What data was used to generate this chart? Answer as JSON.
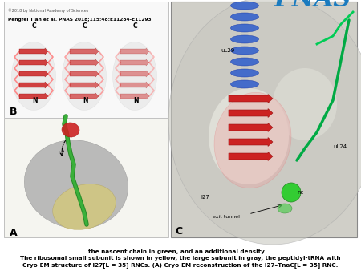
{
  "title_line1": "Cryo-EM structure of I27[L = 35] RNCs. (A) Cryo-EM reconstruction of the I27–TnaC[L = 35] RNC.",
  "title_line2": "The ribosomal small subunit is shown in yellow, the large subunit in gray, the peptidyl-tRNA with",
  "title_line3": "the nascent chain in green, and an additional density ...",
  "citation": "Pengfei Tian et al. PNAS 2018;115:48:E11284-E11293",
  "copyright": "©2018 by National Academy of Sciences",
  "pnas_color": "#1a7bbf",
  "bg_color": "#ffffff",
  "panel_A_label": "A",
  "panel_B_label": "B",
  "panel_C_label": "C",
  "label_exit_tunnel": "exit tunnel",
  "label_I27": "I27",
  "label_nc": "nc",
  "label_uL24": "uL24",
  "label_uL29": "uL29",
  "label_N1": "N",
  "label_C1": "C",
  "panel_a_bg": "#e8e8e8",
  "panel_b_bg": "#f0f0f0",
  "panel_c_bg": "#d8d8d8"
}
